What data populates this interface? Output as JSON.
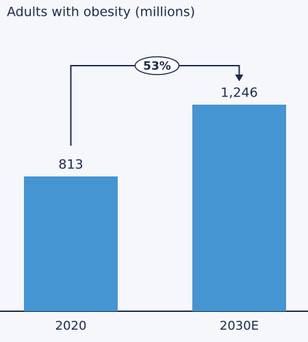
{
  "chart_data": {
    "type": "bar",
    "title": "Adults with obesity (millions)",
    "categories": [
      "2020",
      "2030E"
    ],
    "values": [
      813,
      1246
    ],
    "value_labels": [
      "813",
      "1,246"
    ],
    "color": "#4495d2",
    "annotation": "53%"
  }
}
